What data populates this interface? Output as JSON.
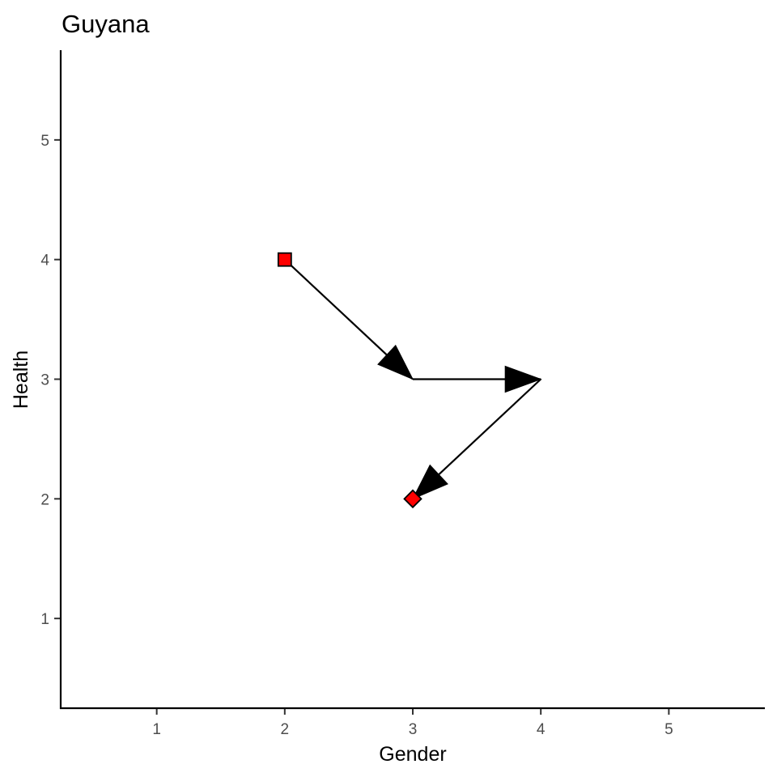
{
  "chart_data": {
    "type": "scatter",
    "title": "Guyana",
    "xlabel": "Gender",
    "ylabel": "Health",
    "xlim": [
      0.25,
      5.75
    ],
    "ylim": [
      0.25,
      5.75
    ],
    "x_ticks": [
      1,
      2,
      3,
      4,
      5
    ],
    "y_ticks": [
      1,
      2,
      3,
      4,
      5
    ],
    "grid": false,
    "path": [
      {
        "x": 2,
        "y": 4
      },
      {
        "x": 3,
        "y": 3
      },
      {
        "x": 4,
        "y": 3
      },
      {
        "x": 3,
        "y": 2
      }
    ],
    "points": [
      {
        "x": 2,
        "y": 4,
        "shape": "square",
        "color": "#ff0000"
      },
      {
        "x": 3,
        "y": 2,
        "shape": "diamond",
        "color": "#ff0000"
      }
    ],
    "marker_stroke": "#000000",
    "path_color": "#000000"
  }
}
